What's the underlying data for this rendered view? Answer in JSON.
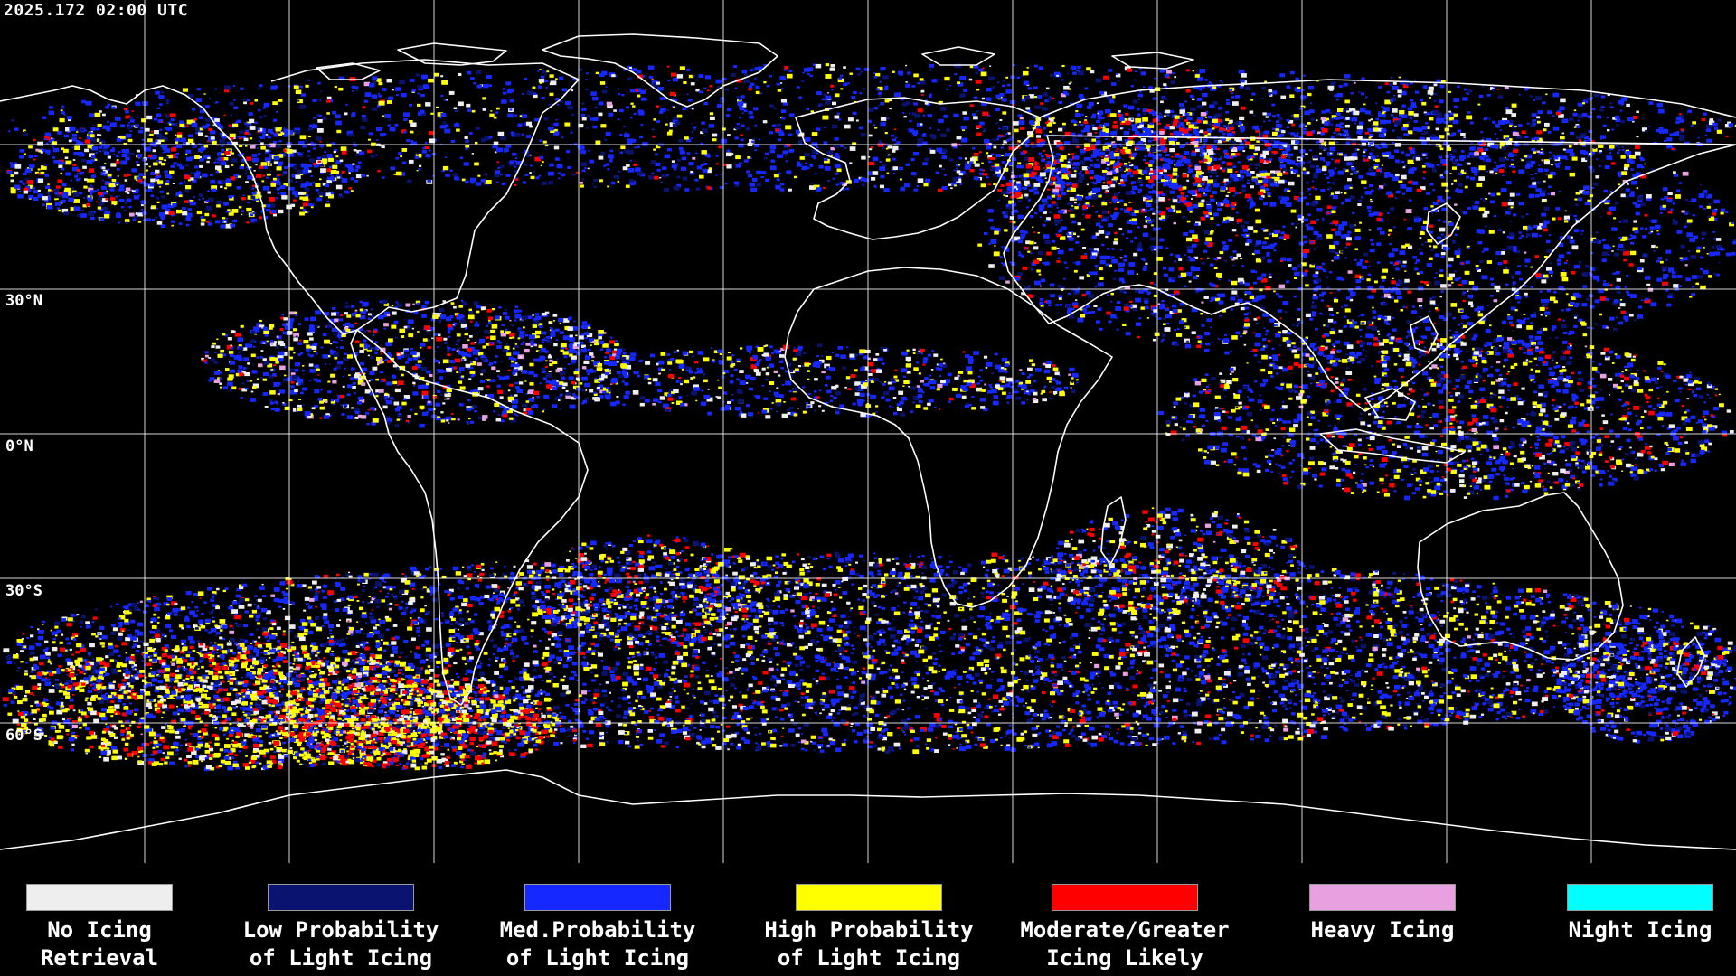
{
  "timestamp": "2025.172 02:00 UTC",
  "map": {
    "type": "satellite-derived in-flight icing product",
    "projection": "equirectangular",
    "lat_labels": [
      "30°N",
      "0°N",
      "30°S",
      "60°S"
    ],
    "coastline_color": "#ffffff",
    "graticule_color": "#ffffff"
  },
  "legend": {
    "items": [
      {
        "label": "No Icing\nRetrieval",
        "color": "#eeeeee"
      },
      {
        "label": "Low Probability\nof Light Icing",
        "color": "#0a1470"
      },
      {
        "label": "Med.Probability\nof Light Icing",
        "color": "#1428ff"
      },
      {
        "label": "High Probability\nof Light Icing",
        "color": "#ffff00"
      },
      {
        "label": "Moderate/Greater\nIcing Likely",
        "color": "#ff0000"
      },
      {
        "label": "Heavy Icing",
        "color": "#e8a0e0"
      },
      {
        "label": "Night Icing",
        "color": "#00ffff"
      }
    ]
  }
}
